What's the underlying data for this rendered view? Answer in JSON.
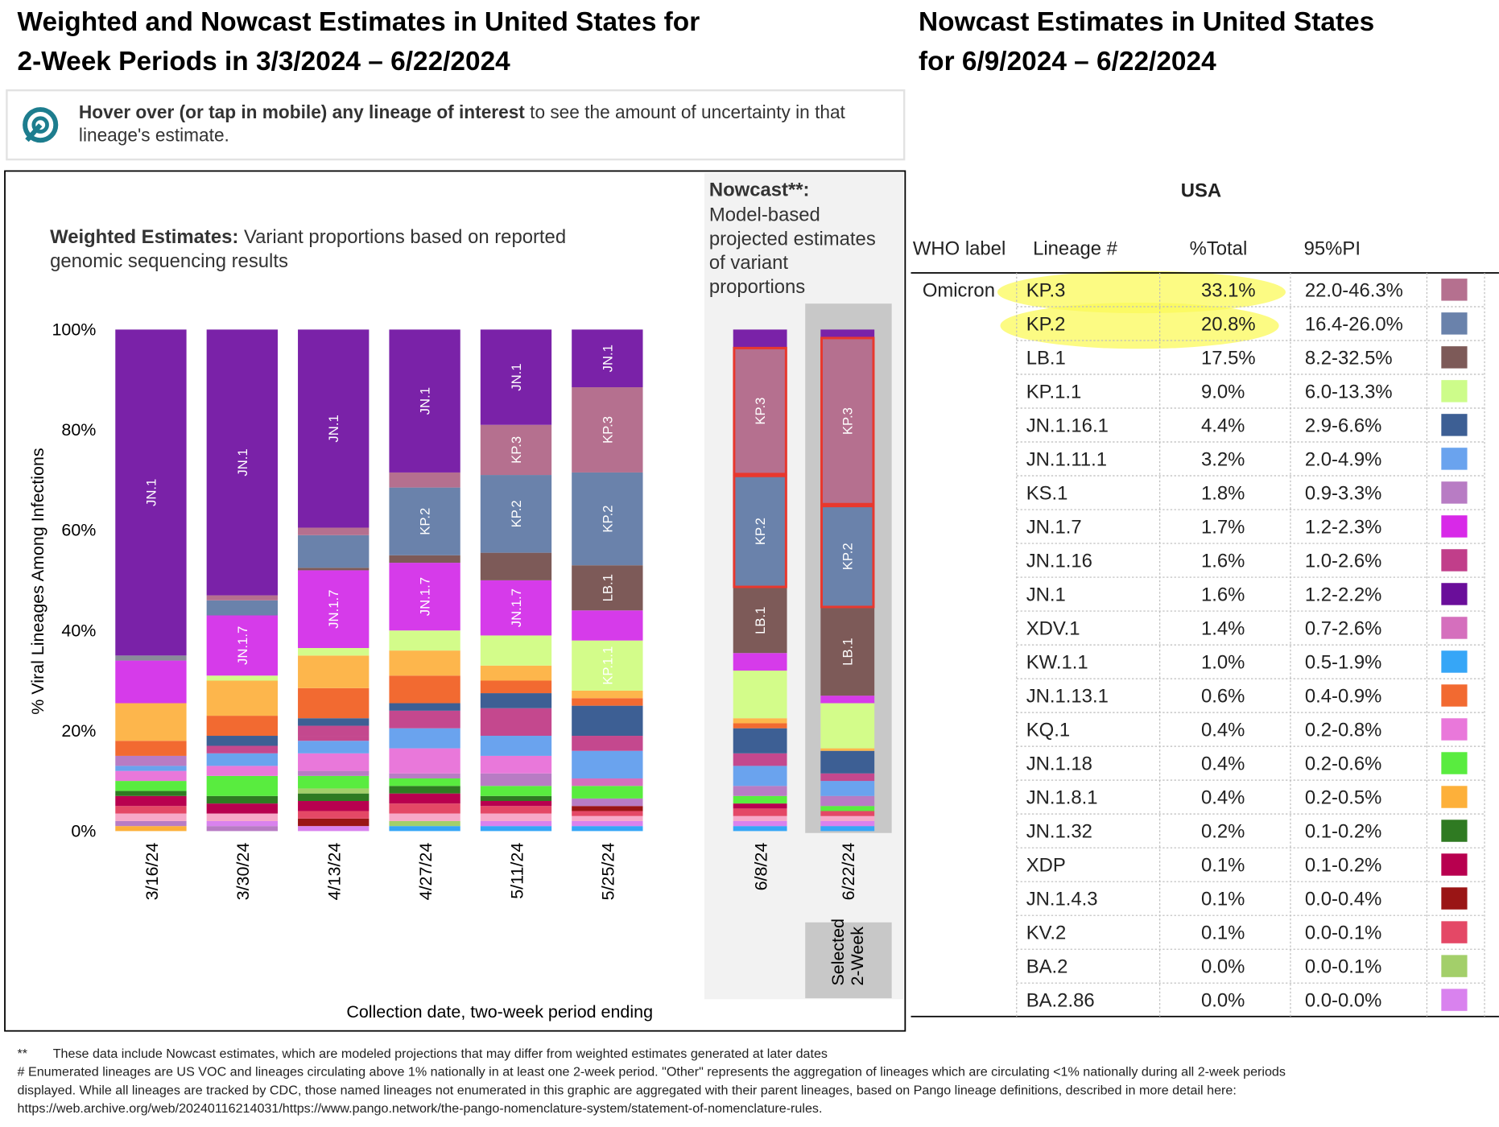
{
  "left_title": [
    "Weighted and Nowcast Estimates in United States for",
    "2-Week Periods in 3/3/2024 – 6/22/2024"
  ],
  "right_title": [
    "Nowcast Estimates in United States",
    "for 6/9/2024 – 6/22/2024"
  ],
  "hint": {
    "bold": "Hover over (or tap in mobile) any lineage of interest",
    "text": " to see the amount of uncertainty in that",
    "text2": "lineage's estimate."
  },
  "chart_data": {
    "type": "stacked_bar",
    "subtitle_bold": "Weighted Estimates:",
    "subtitle": [
      " Variant proportions based on reported",
      "genomic sequencing results"
    ],
    "nowcast_title": "Nowcast**:",
    "nowcast_text": [
      "Model-based",
      "projected estimates",
      "of variant",
      "proportions"
    ],
    "selected_label": [
      "Selected",
      "2-Week"
    ],
    "ylabel": "% Viral Lineages Among Infections",
    "xlabel": "Collection date, two-week period ending",
    "ylim": [
      0,
      100
    ],
    "yticks": [
      {
        "value": 0,
        "label": "0%"
      },
      {
        "value": 20,
        "label": "20%"
      },
      {
        "value": 40,
        "label": "40%"
      },
      {
        "value": 60,
        "label": "60%"
      },
      {
        "value": 80,
        "label": "80%"
      },
      {
        "value": 100,
        "label": "100%"
      }
    ],
    "bars": [
      {
        "category": "3/16/24",
        "nowcast": false,
        "segments": [
          {
            "value": 1,
            "color": "#fdb03a"
          },
          {
            "value": 1,
            "color": "#b87cc4"
          },
          {
            "value": 1.5,
            "color": "#f7a8c8"
          },
          {
            "value": 1.5,
            "color": "#e44866"
          },
          {
            "value": 2,
            "color": "#b8004f"
          },
          {
            "value": 1,
            "color": "#2f7a22"
          },
          {
            "value": 2,
            "color": "#59ec3f"
          },
          {
            "value": 2,
            "color": "#e978da"
          },
          {
            "value": 1,
            "color": "#6aa3ee"
          },
          {
            "value": 2,
            "color": "#b87cc4"
          },
          {
            "value": 3,
            "color": "#f26a31"
          },
          {
            "value": 7.5,
            "color": "#fdb64c"
          },
          {
            "value": 8.5,
            "color": "#d63bea"
          },
          {
            "value": 1,
            "color": "#8a8a9a"
          },
          {
            "value": 65,
            "color": "#7a22a8",
            "label": "JN.1"
          }
        ]
      },
      {
        "category": "3/30/24",
        "nowcast": false,
        "segments": [
          {
            "value": 1,
            "color": "#b87cc4"
          },
          {
            "value": 1,
            "color": "#d982ee"
          },
          {
            "value": 1.5,
            "color": "#f7a8c8"
          },
          {
            "value": 2,
            "color": "#b8004f"
          },
          {
            "value": 1.5,
            "color": "#2f7a22"
          },
          {
            "value": 4,
            "color": "#59ec3f"
          },
          {
            "value": 2,
            "color": "#e978da"
          },
          {
            "value": 2.5,
            "color": "#6aa3ee"
          },
          {
            "value": 1.5,
            "color": "#c4488e"
          },
          {
            "value": 2,
            "color": "#3d5f94"
          },
          {
            "value": 4,
            "color": "#f26a31"
          },
          {
            "value": 7,
            "color": "#fdb64c"
          },
          {
            "value": 1,
            "color": "#d3fc8a"
          },
          {
            "value": 12,
            "color": "#d63bea",
            "label": "JN.1.7"
          },
          {
            "value": 3,
            "color": "#6a82ab"
          },
          {
            "value": 1,
            "color": "#b5708f"
          },
          {
            "value": 53,
            "color": "#7a22a8",
            "label": "JN.1"
          }
        ]
      },
      {
        "category": "4/13/24",
        "nowcast": false,
        "segments": [
          {
            "value": 1,
            "color": "#d982ee"
          },
          {
            "value": 1.5,
            "color": "#9a1515"
          },
          {
            "value": 1.5,
            "color": "#e44866"
          },
          {
            "value": 2,
            "color": "#b8004f"
          },
          {
            "value": 1.5,
            "color": "#2f7a22"
          },
          {
            "value": 1,
            "color": "#a3cf6a"
          },
          {
            "value": 2.5,
            "color": "#59ec3f"
          },
          {
            "value": 1,
            "color": "#b87cc4"
          },
          {
            "value": 3.5,
            "color": "#e978da"
          },
          {
            "value": 2.5,
            "color": "#6aa3ee"
          },
          {
            "value": 1,
            "color": "#c4488e"
          },
          {
            "value": 2,
            "color": "#c4488e"
          },
          {
            "value": 1.5,
            "color": "#3d5f94"
          },
          {
            "value": 6,
            "color": "#f26a31"
          },
          {
            "value": 6.5,
            "color": "#fdb64c"
          },
          {
            "value": 1.5,
            "color": "#d3fc8a"
          },
          {
            "value": 15.5,
            "color": "#d63bea",
            "label": "JN.1.7"
          },
          {
            "value": 0.5,
            "color": "#7d5a58"
          },
          {
            "value": 6.5,
            "color": "#6a82ab"
          },
          {
            "value": 1.5,
            "color": "#b5708f"
          },
          {
            "value": 39.5,
            "color": "#7a22a8",
            "label": "JN.1"
          }
        ]
      },
      {
        "category": "4/27/24",
        "nowcast": false,
        "segments": [
          {
            "value": 1,
            "color": "#36a6f7"
          },
          {
            "value": 1,
            "color": "#a3cf6a"
          },
          {
            "value": 1.5,
            "color": "#f7a8c8"
          },
          {
            "value": 2,
            "color": "#e44866"
          },
          {
            "value": 2,
            "color": "#b8004f"
          },
          {
            "value": 1.5,
            "color": "#2f7a22"
          },
          {
            "value": 1.5,
            "color": "#59ec3f"
          },
          {
            "value": 1,
            "color": "#b87cc4"
          },
          {
            "value": 5,
            "color": "#e978da"
          },
          {
            "value": 4,
            "color": "#6aa3ee"
          },
          {
            "value": 3.5,
            "color": "#c4488e"
          },
          {
            "value": 1.5,
            "color": "#3d5f94"
          },
          {
            "value": 5.5,
            "color": "#f26a31"
          },
          {
            "value": 5,
            "color": "#fdb64c"
          },
          {
            "value": 4,
            "color": "#d3fc8a"
          },
          {
            "value": 13.5,
            "color": "#d63bea",
            "label": "JN.1.7"
          },
          {
            "value": 1.5,
            "color": "#7d5a58"
          },
          {
            "value": 13.5,
            "color": "#6a82ab",
            "label": "KP.2"
          },
          {
            "value": 3,
            "color": "#b5708f"
          },
          {
            "value": 28.5,
            "color": "#7a22a8",
            "label": "JN.1"
          }
        ]
      },
      {
        "category": "5/11/24",
        "nowcast": false,
        "segments": [
          {
            "value": 1,
            "color": "#36a6f7"
          },
          {
            "value": 1,
            "color": "#d982ee"
          },
          {
            "value": 1.5,
            "color": "#f7a8c8"
          },
          {
            "value": 1.5,
            "color": "#e44866"
          },
          {
            "value": 1,
            "color": "#b8004f"
          },
          {
            "value": 1,
            "color": "#2f7a22"
          },
          {
            "value": 2,
            "color": "#59ec3f"
          },
          {
            "value": 2.5,
            "color": "#b87cc4"
          },
          {
            "value": 3.5,
            "color": "#e978da"
          },
          {
            "value": 4,
            "color": "#6aa3ee"
          },
          {
            "value": 5.5,
            "color": "#c4488e"
          },
          {
            "value": 3,
            "color": "#3d5f94"
          },
          {
            "value": 2.5,
            "color": "#f26a31"
          },
          {
            "value": 3,
            "color": "#fdb64c"
          },
          {
            "value": 6,
            "color": "#d3fc8a"
          },
          {
            "value": 11,
            "color": "#d63bea",
            "label": "JN.1.7"
          },
          {
            "value": 5.5,
            "color": "#7d5a58"
          },
          {
            "value": 15.5,
            "color": "#6a82ab",
            "label": "KP.2"
          },
          {
            "value": 10,
            "color": "#b5708f",
            "label": "KP.3"
          },
          {
            "value": 19,
            "color": "#7a22a8",
            "label": "JN.1"
          }
        ]
      },
      {
        "category": "5/25/24",
        "nowcast": false,
        "segments": [
          {
            "value": 1,
            "color": "#36a6f7"
          },
          {
            "value": 1,
            "color": "#d982ee"
          },
          {
            "value": 1,
            "color": "#f7a8c8"
          },
          {
            "value": 1,
            "color": "#e44866"
          },
          {
            "value": 1,
            "color": "#9a1515"
          },
          {
            "value": 1.5,
            "color": "#b87cc4"
          },
          {
            "value": 2.5,
            "color": "#59ec3f"
          },
          {
            "value": 1.5,
            "color": "#d56fbd"
          },
          {
            "value": 5.5,
            "color": "#6aa3ee"
          },
          {
            "value": 3,
            "color": "#c4488e"
          },
          {
            "value": 6,
            "color": "#3d5f94"
          },
          {
            "value": 1.5,
            "color": "#f26a31"
          },
          {
            "value": 1.5,
            "color": "#fdb64c"
          },
          {
            "value": 10,
            "color": "#d3fc8a",
            "label": "KP.1.1"
          },
          {
            "value": 6,
            "color": "#d63bea"
          },
          {
            "value": 9,
            "color": "#7d5a58",
            "label": "LB.1"
          },
          {
            "value": 18.5,
            "color": "#6a82ab",
            "label": "KP.2"
          },
          {
            "value": 17,
            "color": "#b5708f",
            "label": "KP.3"
          },
          {
            "value": 11.5,
            "color": "#7a22a8",
            "label": "JN.1"
          }
        ]
      },
      {
        "category": "6/8/24",
        "nowcast": true,
        "segments": [
          {
            "value": 1,
            "color": "#36a6f7"
          },
          {
            "value": 1,
            "color": "#d982ee"
          },
          {
            "value": 1,
            "color": "#f7a8c8"
          },
          {
            "value": 1.5,
            "color": "#e44866"
          },
          {
            "value": 1,
            "color": "#b8004f"
          },
          {
            "value": 1.5,
            "color": "#59ec3f"
          },
          {
            "value": 2,
            "color": "#b87cc4"
          },
          {
            "value": 4,
            "color": "#6aa3ee"
          },
          {
            "value": 2.5,
            "color": "#c4488e"
          },
          {
            "value": 5,
            "color": "#3d5f94"
          },
          {
            "value": 1,
            "color": "#f26a31"
          },
          {
            "value": 1,
            "color": "#fdb64c"
          },
          {
            "value": 9.5,
            "color": "#d3fc8a"
          },
          {
            "value": 3.5,
            "color": "#d63bea"
          },
          {
            "value": 13,
            "color": "#7d5a58",
            "label": "LB.1"
          },
          {
            "value": 22.5,
            "color": "#6a82ab",
            "label": "KP.2",
            "outline": "#e8382e"
          },
          {
            "value": 25.5,
            "color": "#b5708f",
            "label": "KP.3",
            "outline": "#e8382e"
          },
          {
            "value": 3.5,
            "color": "#7a22a8"
          }
        ]
      },
      {
        "category": "6/22/24",
        "nowcast": true,
        "selected": true,
        "segments": [
          {
            "value": 1,
            "color": "#36a6f7"
          },
          {
            "value": 1,
            "color": "#d982ee"
          },
          {
            "value": 1,
            "color": "#f7a8c8"
          },
          {
            "value": 1,
            "color": "#e44866"
          },
          {
            "value": 1,
            "color": "#59ec3f"
          },
          {
            "value": 2,
            "color": "#b87cc4"
          },
          {
            "value": 3,
            "color": "#6aa3ee"
          },
          {
            "value": 1.5,
            "color": "#c4488e"
          },
          {
            "value": 4.5,
            "color": "#3d5f94"
          },
          {
            "value": 0.5,
            "color": "#fdb64c"
          },
          {
            "value": 9,
            "color": "#d3fc8a"
          },
          {
            "value": 1.5,
            "color": "#d63bea"
          },
          {
            "value": 17.5,
            "color": "#7d5a58",
            "label": "LB.1"
          },
          {
            "value": 20.5,
            "color": "#6a82ab",
            "label": "KP.2",
            "outline": "#e8382e"
          },
          {
            "value": 33.5,
            "color": "#b5708f",
            "label": "KP.3",
            "outline": "#e8382e"
          },
          {
            "value": 1.5,
            "color": "#7a22a8"
          }
        ]
      }
    ]
  },
  "table": {
    "title": "USA",
    "columns": [
      "WHO label",
      "Lineage #",
      "%Total",
      "95%PI"
    ],
    "rows": [
      [
        "Omicron",
        "KP.3",
        "33.1%",
        "22.0-46.3%"
      ],
      [
        "",
        "KP.2",
        "20.8%",
        "16.4-26.0%"
      ],
      [
        "",
        "LB.1",
        "17.5%",
        "8.2-32.5%"
      ],
      [
        "",
        "KP.1.1",
        "9.0%",
        "6.0-13.3%"
      ],
      [
        "",
        "JN.1.16.1",
        "4.4%",
        "2.9-6.6%"
      ],
      [
        "",
        "JN.1.11.1",
        "3.2%",
        "2.0-4.9%"
      ],
      [
        "",
        "KS.1",
        "1.8%",
        "0.9-3.3%"
      ],
      [
        "",
        "JN.1.7",
        "1.7%",
        "1.2-2.3%"
      ],
      [
        "",
        "JN.1.16",
        "1.6%",
        "1.0-2.6%"
      ],
      [
        "",
        "JN.1",
        "1.6%",
        "1.2-2.2%"
      ],
      [
        "",
        "XDV.1",
        "1.4%",
        "0.7-2.6%"
      ],
      [
        "",
        "KW.1.1",
        "1.0%",
        "0.5-1.9%"
      ],
      [
        "",
        "JN.1.13.1",
        "0.6%",
        "0.4-0.9%"
      ],
      [
        "",
        "KQ.1",
        "0.4%",
        "0.2-0.8%"
      ],
      [
        "",
        "JN.1.18",
        "0.4%",
        "0.2-0.6%"
      ],
      [
        "",
        "JN.1.8.1",
        "0.4%",
        "0.2-0.5%"
      ],
      [
        "",
        "JN.1.32",
        "0.2%",
        "0.1-0.2%"
      ],
      [
        "",
        "XDP",
        "0.1%",
        "0.1-0.2%"
      ],
      [
        "",
        "JN.1.4.3",
        "0.1%",
        "0.0-0.4%"
      ],
      [
        "",
        "KV.2",
        "0.1%",
        "0.0-0.1%"
      ],
      [
        "",
        "BA.2",
        "0.0%",
        "0.0-0.1%"
      ],
      [
        "",
        "BA.2.86",
        "0.0%",
        "0.0-0.0%"
      ]
    ],
    "colors": [
      "#b5708f",
      "#6a82ab",
      "#7d5a58",
      "#cdfc8a",
      "#3d5f94",
      "#6aa3ee",
      "#b87cc4",
      "#d829e8",
      "#c13e8a",
      "#6a0e9a",
      "#d56fbd",
      "#36a6f7",
      "#f26a31",
      "#e978da",
      "#59ec3f",
      "#fdb03a",
      "#2f7a22",
      "#b8004f",
      "#9a1515",
      "#e44866",
      "#a3cf6a",
      "#d982ee"
    ]
  },
  "footnotes": [
    [
      "**",
      "These data include Nowcast estimates, which are modeled projections that may differ from weighted estimates generated at later dates"
    ],
    [
      "# Enumerated lineages are US VOC and lineages circulating above 1% nationally in at least one 2-week period. \"Other\" represents the aggregation of lineages which are circulating <1% nationally during all 2-week periods"
    ],
    [
      "displayed.  While all lineages are tracked by CDC, those named lineages not enumerated in this graphic are aggregated with their parent lineages, based on Pango lineage definitions, described in more detail here:"
    ],
    [
      "https://web.archive.org/web/20240116214031/https://www.pango.network/the-pango-nomenclature-system/statement-of-nomenclature-rules."
    ]
  ]
}
